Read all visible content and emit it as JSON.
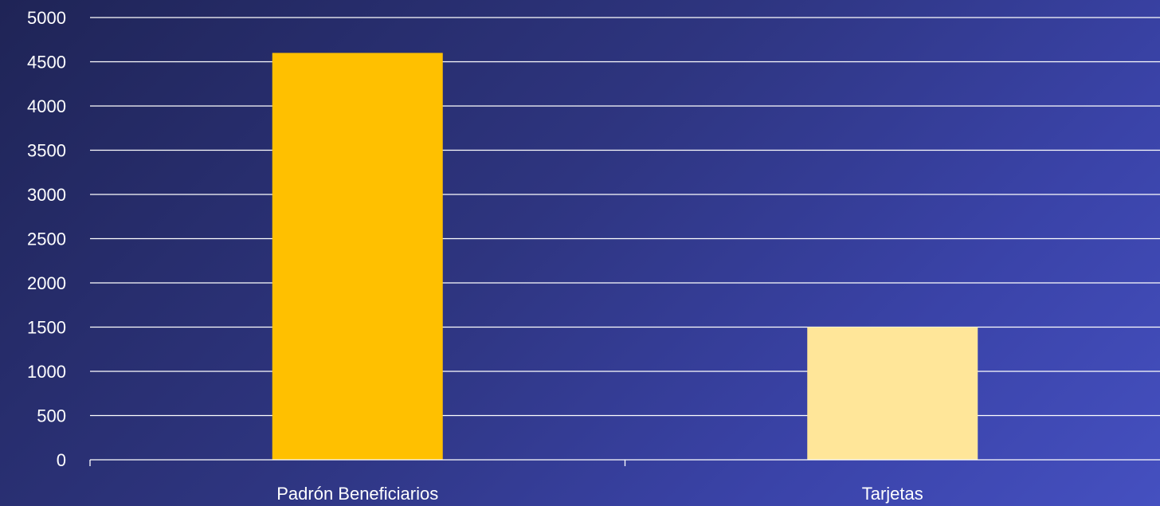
{
  "chart_data": {
    "type": "bar",
    "categories": [
      "Padrón Beneficiarios",
      "Tarjetas"
    ],
    "values": [
      4600,
      1500
    ],
    "ylim": [
      0,
      5000
    ],
    "yticks": [
      0,
      500,
      1000,
      1500,
      2000,
      2500,
      3000,
      3500,
      4000,
      4500,
      5000
    ],
    "grid": true,
    "legend": "none"
  },
  "colors": {
    "bars": [
      "#FFC000",
      "#FFE699"
    ],
    "grid": "#ffffff",
    "text": "#ffffff"
  }
}
